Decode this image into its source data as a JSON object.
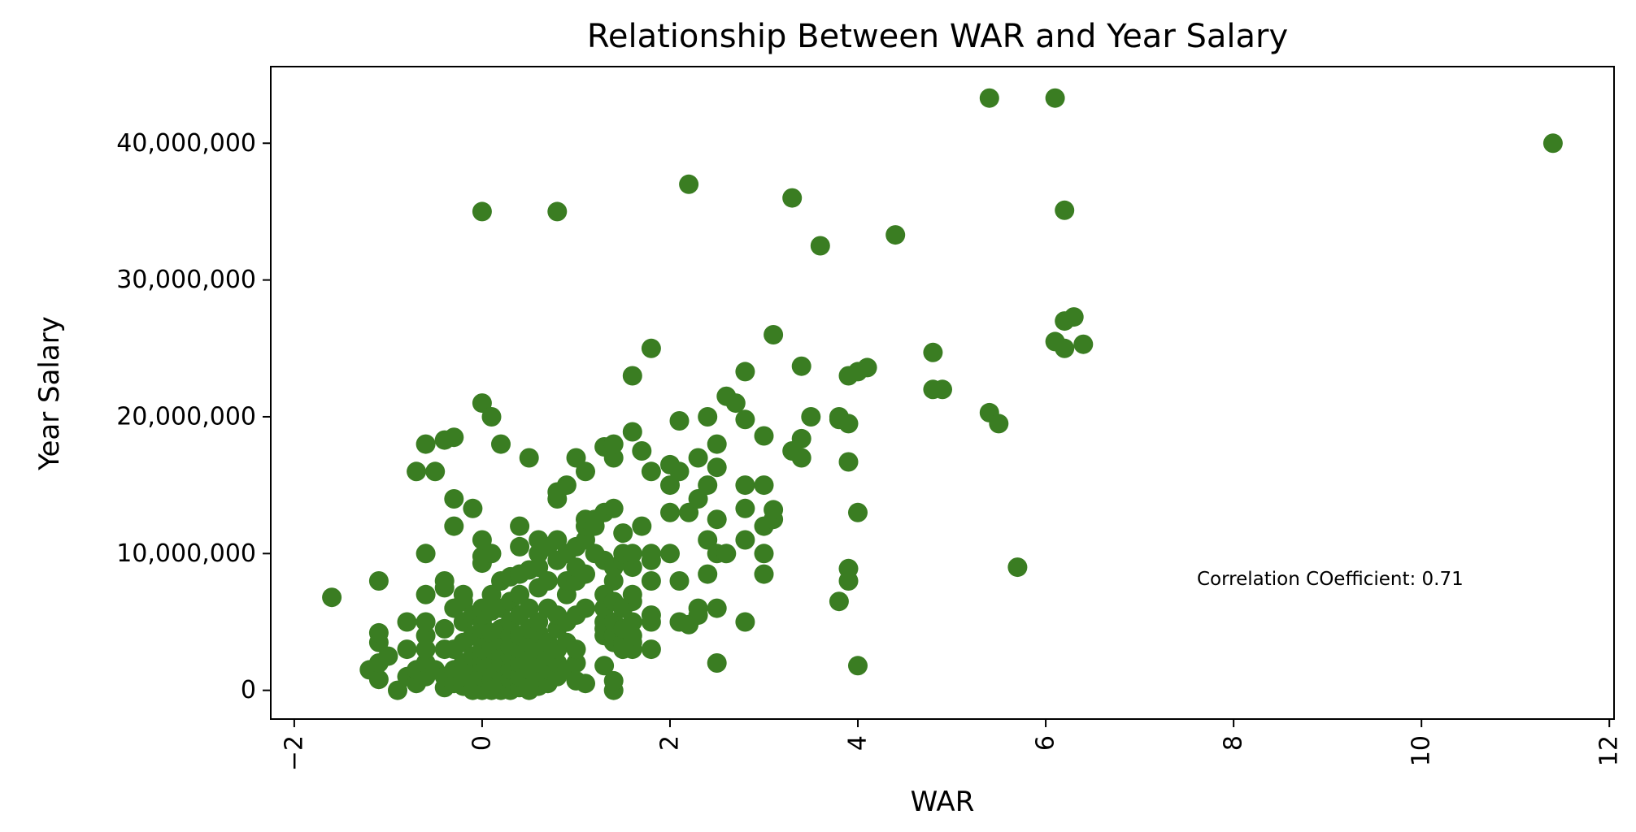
{
  "chart_data": {
    "type": "scatter",
    "title": "Relationship Between WAR and Year Salary",
    "xlabel": "WAR",
    "ylabel": "Year Salary",
    "xlim": [
      -2.25,
      12.05
    ],
    "ylim": [
      -2100000,
      45600000
    ],
    "x_ticks": [
      -2,
      0,
      2,
      4,
      6,
      8,
      10,
      12
    ],
    "x_tick_labels": [
      "−2",
      "0",
      "2",
      "4",
      "6",
      "8",
      "10",
      "12"
    ],
    "y_ticks": [
      0,
      10000000,
      20000000,
      30000000,
      40000000
    ],
    "y_tick_labels": [
      "0",
      "10,000,000",
      "20,000,000",
      "30,000,000",
      "40,000,000"
    ],
    "marker_color": "#3a7d22",
    "grid": false,
    "annotation": "Correlation COefficient: 0.71",
    "points": [
      [
        -1.6,
        6800000
      ],
      [
        -1.2,
        1500000
      ],
      [
        -1.1,
        800000
      ],
      [
        -1.1,
        2000000
      ],
      [
        -1.1,
        3500000
      ],
      [
        -1.1,
        4200000
      ],
      [
        -1.1,
        8000000
      ],
      [
        -1.0,
        2500000
      ],
      [
        -0.9,
        0
      ],
      [
        -0.8,
        1000000
      ],
      [
        -0.8,
        3000000
      ],
      [
        -0.8,
        5000000
      ],
      [
        -0.7,
        500000
      ],
      [
        -0.7,
        1500000
      ],
      [
        -0.7,
        16000000
      ],
      [
        -0.6,
        1000000
      ],
      [
        -0.6,
        2000000
      ],
      [
        -0.6,
        3000000
      ],
      [
        -0.6,
        4000000
      ],
      [
        -0.6,
        5000000
      ],
      [
        -0.6,
        7000000
      ],
      [
        -0.6,
        10000000
      ],
      [
        -0.6,
        18000000
      ],
      [
        -0.5,
        1500000
      ],
      [
        -0.5,
        16000000
      ],
      [
        -0.4,
        200000
      ],
      [
        -0.4,
        1000000
      ],
      [
        -0.4,
        3000000
      ],
      [
        -0.4,
        4500000
      ],
      [
        -0.4,
        7500000
      ],
      [
        -0.4,
        8000000
      ],
      [
        -0.4,
        18300000
      ],
      [
        -0.3,
        500000
      ],
      [
        -0.3,
        1500000
      ],
      [
        -0.3,
        3000000
      ],
      [
        -0.3,
        6000000
      ],
      [
        -0.3,
        12000000
      ],
      [
        -0.3,
        14000000
      ],
      [
        -0.3,
        18500000
      ],
      [
        -0.2,
        300000
      ],
      [
        -0.2,
        1000000
      ],
      [
        -0.2,
        2000000
      ],
      [
        -0.2,
        3500000
      ],
      [
        -0.2,
        5000000
      ],
      [
        -0.2,
        6500000
      ],
      [
        -0.2,
        7000000
      ],
      [
        -0.1,
        0
      ],
      [
        -0.1,
        800000
      ],
      [
        -0.1,
        1800000
      ],
      [
        -0.1,
        2500000
      ],
      [
        -0.1,
        4000000
      ],
      [
        -0.1,
        5500000
      ],
      [
        -0.1,
        13300000
      ],
      [
        0.0,
        0
      ],
      [
        0.0,
        500000
      ],
      [
        0.0,
        1000000
      ],
      [
        0.0,
        1500000
      ],
      [
        0.0,
        2000000
      ],
      [
        0.0,
        2500000
      ],
      [
        0.0,
        3000000
      ],
      [
        0.0,
        3500000
      ],
      [
        0.0,
        4000000
      ],
      [
        0.0,
        4500000
      ],
      [
        0.0,
        5000000
      ],
      [
        0.0,
        5500000
      ],
      [
        0.0,
        6000000
      ],
      [
        0.0,
        9300000
      ],
      [
        0.0,
        9800000
      ],
      [
        0.0,
        11000000
      ],
      [
        0.0,
        21000000
      ],
      [
        0.0,
        35000000
      ],
      [
        0.1,
        0
      ],
      [
        0.1,
        700000
      ],
      [
        0.1,
        1300000
      ],
      [
        0.1,
        2200000
      ],
      [
        0.1,
        3000000
      ],
      [
        0.1,
        4200000
      ],
      [
        0.1,
        5800000
      ],
      [
        0.1,
        7000000
      ],
      [
        0.1,
        10000000
      ],
      [
        0.1,
        20000000
      ],
      [
        0.2,
        0
      ],
      [
        0.2,
        500000
      ],
      [
        0.2,
        1200000
      ],
      [
        0.2,
        2000000
      ],
      [
        0.2,
        2800000
      ],
      [
        0.2,
        3600000
      ],
      [
        0.2,
        4500000
      ],
      [
        0.2,
        6000000
      ],
      [
        0.2,
        8000000
      ],
      [
        0.2,
        18000000
      ],
      [
        0.3,
        0
      ],
      [
        0.3,
        800000
      ],
      [
        0.3,
        1500000
      ],
      [
        0.3,
        2500000
      ],
      [
        0.3,
        3200000
      ],
      [
        0.3,
        4000000
      ],
      [
        0.3,
        5000000
      ],
      [
        0.3,
        6500000
      ],
      [
        0.3,
        8300000
      ],
      [
        0.4,
        200000
      ],
      [
        0.4,
        1000000
      ],
      [
        0.4,
        2000000
      ],
      [
        0.4,
        3000000
      ],
      [
        0.4,
        4000000
      ],
      [
        0.4,
        5500000
      ],
      [
        0.4,
        7000000
      ],
      [
        0.4,
        8500000
      ],
      [
        0.4,
        10500000
      ],
      [
        0.4,
        12000000
      ],
      [
        0.5,
        0
      ],
      [
        0.5,
        600000
      ],
      [
        0.5,
        1500000
      ],
      [
        0.5,
        2500000
      ],
      [
        0.5,
        3500000
      ],
      [
        0.5,
        4500000
      ],
      [
        0.5,
        6000000
      ],
      [
        0.5,
        8800000
      ],
      [
        0.5,
        17000000
      ],
      [
        0.6,
        300000
      ],
      [
        0.6,
        1000000
      ],
      [
        0.6,
        2000000
      ],
      [
        0.6,
        3000000
      ],
      [
        0.6,
        4200000
      ],
      [
        0.6,
        5000000
      ],
      [
        0.6,
        7500000
      ],
      [
        0.6,
        9000000
      ],
      [
        0.6,
        10000000
      ],
      [
        0.6,
        11000000
      ],
      [
        0.7,
        500000
      ],
      [
        0.7,
        1500000
      ],
      [
        0.7,
        2500000
      ],
      [
        0.7,
        3500000
      ],
      [
        0.7,
        6000000
      ],
      [
        0.7,
        8000000
      ],
      [
        0.7,
        10500000
      ],
      [
        0.8,
        1000000
      ],
      [
        0.8,
        2000000
      ],
      [
        0.8,
        3000000
      ],
      [
        0.8,
        4500000
      ],
      [
        0.8,
        5500000
      ],
      [
        0.8,
        9500000
      ],
      [
        0.8,
        11000000
      ],
      [
        0.8,
        14000000
      ],
      [
        0.8,
        14500000
      ],
      [
        0.8,
        35000000
      ],
      [
        0.9,
        1500000
      ],
      [
        0.9,
        3500000
      ],
      [
        0.9,
        5000000
      ],
      [
        0.9,
        7000000
      ],
      [
        0.9,
        8000000
      ],
      [
        0.9,
        10000000
      ],
      [
        0.9,
        15000000
      ],
      [
        1.0,
        700000
      ],
      [
        1.0,
        2000000
      ],
      [
        1.0,
        3000000
      ],
      [
        1.0,
        5500000
      ],
      [
        1.0,
        8000000
      ],
      [
        1.0,
        9000000
      ],
      [
        1.0,
        10500000
      ],
      [
        1.0,
        17000000
      ],
      [
        1.1,
        500000
      ],
      [
        1.1,
        6000000
      ],
      [
        1.1,
        8500000
      ],
      [
        1.1,
        11000000
      ],
      [
        1.1,
        12000000
      ],
      [
        1.1,
        12500000
      ],
      [
        1.1,
        16000000
      ],
      [
        1.2,
        10000000
      ],
      [
        1.2,
        12000000
      ],
      [
        1.2,
        12500000
      ],
      [
        1.3,
        1800000
      ],
      [
        1.3,
        4000000
      ],
      [
        1.3,
        4500000
      ],
      [
        1.3,
        5000000
      ],
      [
        1.3,
        6000000
      ],
      [
        1.3,
        7000000
      ],
      [
        1.3,
        9500000
      ],
      [
        1.3,
        13000000
      ],
      [
        1.3,
        17800000
      ],
      [
        1.4,
        0
      ],
      [
        1.4,
        700000
      ],
      [
        1.4,
        3500000
      ],
      [
        1.4,
        4000000
      ],
      [
        1.4,
        5000000
      ],
      [
        1.4,
        6500000
      ],
      [
        1.4,
        8000000
      ],
      [
        1.4,
        9000000
      ],
      [
        1.4,
        13300000
      ],
      [
        1.4,
        17000000
      ],
      [
        1.4,
        18000000
      ],
      [
        1.5,
        3000000
      ],
      [
        1.5,
        3500000
      ],
      [
        1.5,
        4500000
      ],
      [
        1.5,
        6000000
      ],
      [
        1.5,
        9500000
      ],
      [
        1.5,
        10000000
      ],
      [
        1.5,
        11500000
      ],
      [
        1.6,
        3000000
      ],
      [
        1.6,
        3500000
      ],
      [
        1.6,
        4000000
      ],
      [
        1.6,
        5000000
      ],
      [
        1.6,
        6500000
      ],
      [
        1.6,
        7000000
      ],
      [
        1.6,
        9000000
      ],
      [
        1.6,
        10000000
      ],
      [
        1.6,
        18900000
      ],
      [
        1.6,
        23000000
      ],
      [
        1.7,
        12000000
      ],
      [
        1.7,
        17500000
      ],
      [
        1.8,
        3000000
      ],
      [
        1.8,
        5000000
      ],
      [
        1.8,
        5500000
      ],
      [
        1.8,
        8000000
      ],
      [
        1.8,
        9500000
      ],
      [
        1.8,
        10000000
      ],
      [
        1.8,
        16000000
      ],
      [
        1.8,
        25000000
      ],
      [
        2.0,
        10000000
      ],
      [
        2.0,
        13000000
      ],
      [
        2.0,
        15000000
      ],
      [
        2.0,
        16500000
      ],
      [
        2.1,
        5000000
      ],
      [
        2.1,
        8000000
      ],
      [
        2.1,
        16000000
      ],
      [
        2.1,
        19700000
      ],
      [
        2.2,
        4800000
      ],
      [
        2.2,
        13000000
      ],
      [
        2.2,
        37000000
      ],
      [
        2.3,
        5500000
      ],
      [
        2.3,
        6000000
      ],
      [
        2.3,
        14000000
      ],
      [
        2.3,
        17000000
      ],
      [
        2.4,
        8500000
      ],
      [
        2.4,
        11000000
      ],
      [
        2.4,
        15000000
      ],
      [
        2.4,
        20000000
      ],
      [
        2.5,
        2000000
      ],
      [
        2.5,
        6000000
      ],
      [
        2.5,
        10000000
      ],
      [
        2.5,
        12500000
      ],
      [
        2.5,
        16300000
      ],
      [
        2.5,
        18000000
      ],
      [
        2.6,
        10000000
      ],
      [
        2.6,
        21500000
      ],
      [
        2.7,
        21000000
      ],
      [
        2.8,
        5000000
      ],
      [
        2.8,
        11000000
      ],
      [
        2.8,
        13300000
      ],
      [
        2.8,
        15000000
      ],
      [
        2.8,
        19800000
      ],
      [
        2.8,
        23300000
      ],
      [
        3.0,
        8500000
      ],
      [
        3.0,
        10000000
      ],
      [
        3.0,
        12000000
      ],
      [
        3.0,
        15000000
      ],
      [
        3.0,
        18600000
      ],
      [
        3.1,
        12500000
      ],
      [
        3.1,
        13200000
      ],
      [
        3.1,
        26000000
      ],
      [
        3.3,
        17500000
      ],
      [
        3.3,
        36000000
      ],
      [
        3.4,
        17000000
      ],
      [
        3.4,
        18400000
      ],
      [
        3.4,
        23700000
      ],
      [
        3.5,
        20000000
      ],
      [
        3.6,
        32500000
      ],
      [
        3.8,
        6500000
      ],
      [
        3.8,
        19800000
      ],
      [
        3.8,
        20000000
      ],
      [
        3.9,
        8000000
      ],
      [
        3.9,
        8900000
      ],
      [
        3.9,
        16700000
      ],
      [
        3.9,
        19500000
      ],
      [
        3.9,
        23000000
      ],
      [
        4.0,
        1800000
      ],
      [
        4.0,
        13000000
      ],
      [
        4.0,
        23300000
      ],
      [
        4.1,
        23600000
      ],
      [
        4.4,
        33300000
      ],
      [
        4.8,
        22000000
      ],
      [
        4.8,
        24700000
      ],
      [
        4.9,
        22000000
      ],
      [
        5.4,
        20300000
      ],
      [
        5.4,
        43300000
      ],
      [
        5.5,
        19500000
      ],
      [
        5.7,
        9000000
      ],
      [
        6.1,
        25500000
      ],
      [
        6.1,
        43300000
      ],
      [
        6.2,
        25000000
      ],
      [
        6.2,
        27000000
      ],
      [
        6.2,
        35100000
      ],
      [
        6.3,
        27300000
      ],
      [
        6.4,
        25300000
      ],
      [
        11.4,
        40000000
      ]
    ]
  }
}
